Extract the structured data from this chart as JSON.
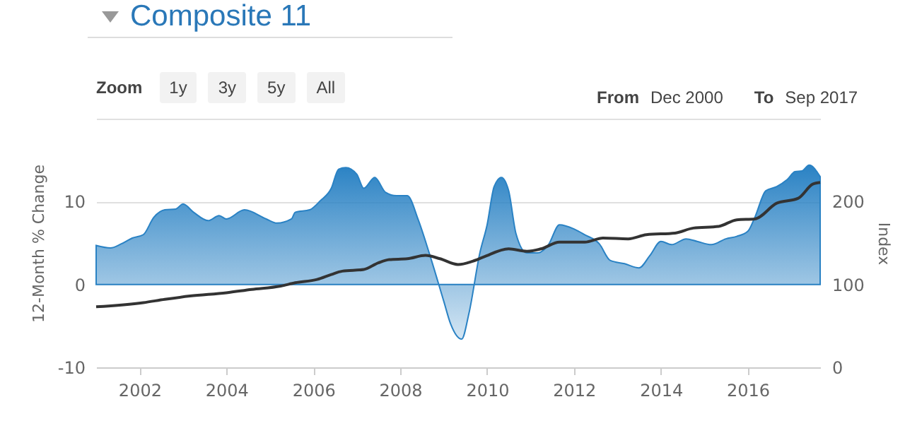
{
  "chart_data": {
    "type": "area",
    "title": "Composite 11",
    "ylabel": "12-Month % Change",
    "y2label": "Index",
    "annotations": [
      "Zoom",
      "1y",
      "3y",
      "5y",
      "All",
      "From",
      "Dec 2000",
      "To",
      "Sep 2017"
    ],
    "xlim": [
      "2001-01",
      "2017-09"
    ],
    "xticks": [
      "2002",
      "2004",
      "2006",
      "2008",
      "2010",
      "2012",
      "2014",
      "2016"
    ],
    "ylim": [
      -10,
      20
    ],
    "yticks": [
      -10,
      0,
      10,
      {
        "value": 20,
        "label": null
      }
    ],
    "y2lim": [
      0,
      300
    ],
    "y2ticks": [
      0,
      100,
      200
    ],
    "grid": "y",
    "series": [
      {
        "color": "#2a82c4",
        "x": [
          "2001-01",
          "2001-05",
          "2001-08",
          "2001-11",
          "2002-02",
          "2002-05",
          "2002-08",
          "2002-11",
          "2003-01",
          "2003-04",
          "2003-08",
          "2003-11",
          "2004-01",
          "2004-06",
          "2004-12",
          "2005-03",
          "2005-07",
          "2005-08",
          "2005-12",
          "2006-03",
          "2006-06",
          "2006-08",
          "2006-10",
          "2007-01",
          "2007-03",
          "2007-06",
          "2007-09",
          "2007-12",
          "2008-03",
          "2008-06",
          "2008-09",
          "2009-01",
          "2009-03",
          "2009-06",
          "2009-08",
          "2009-11",
          "2010-01",
          "2010-03",
          "2010-05",
          "2010-07",
          "2010-09",
          "2010-12",
          "2011-03",
          "2011-06",
          "2011-09",
          "2012-01",
          "2012-04",
          "2012-08",
          "2012-11",
          "2013-03",
          "2013-07",
          "2013-10",
          "2014-01",
          "2014-04",
          "2014-08",
          "2014-11",
          "2015-03",
          "2015-07",
          "2015-10",
          "2016-01",
          "2016-03",
          "2016-06",
          "2016-09",
          "2016-12",
          "2017-02",
          "2017-04",
          "2017-06",
          "2017-09"
        ],
        "values": [
          4.7,
          4.4,
          4.9,
          5.6,
          6.0,
          8.1,
          9.0,
          9.1,
          9.7,
          8.7,
          7.7,
          8.3,
          7.9,
          9.0,
          7.9,
          7.4,
          7.9,
          8.7,
          9.0,
          10.1,
          11.6,
          13.9,
          14.1,
          13.3,
          11.6,
          12.9,
          11.1,
          10.7,
          10.7,
          7.8,
          3.8,
          -2.0,
          -4.8,
          -6.6,
          -3.5,
          3.8,
          7.2,
          11.8,
          12.9,
          11.3,
          6.1,
          3.8,
          3.8,
          4.8,
          7.2,
          6.7,
          6.0,
          4.9,
          2.9,
          2.5,
          2.0,
          3.5,
          5.2,
          4.8,
          5.5,
          5.2,
          4.8,
          5.5,
          5.8,
          6.4,
          8.1,
          11.3,
          11.8,
          12.7,
          13.6,
          13.7,
          14.4,
          13.0
        ]
      },
      {
        "type": "line",
        "axis": "y2",
        "color": "#333333",
        "x": [
          "2001-01",
          "2002-02",
          "2002-08",
          "2003-03",
          "2004-01",
          "2004-08",
          "2005-04",
          "2005-08",
          "2006-02",
          "2006-06",
          "2006-09",
          "2007-03",
          "2007-07",
          "2007-10",
          "2008-03",
          "2008-08",
          "2008-12",
          "2009-05",
          "2009-09",
          "2009-12",
          "2010-07",
          "2010-12",
          "2011-04",
          "2011-09",
          "2012-04",
          "2012-09",
          "2013-04",
          "2013-09",
          "2014-05",
          "2014-10",
          "2015-05",
          "2015-10",
          "2016-03",
          "2016-09",
          "2017-03",
          "2017-07",
          "2017-09"
        ],
        "values": [
          73,
          78,
          82,
          86,
          90,
          94,
          98,
          102,
          106,
          112,
          116,
          118,
          126,
          130,
          131,
          135,
          131,
          124,
          128,
          133,
          143,
          140,
          143,
          151,
          151,
          156,
          155,
          160,
          162,
          168,
          170,
          178,
          179,
          198,
          204,
          221,
          223
        ]
      }
    ]
  }
}
